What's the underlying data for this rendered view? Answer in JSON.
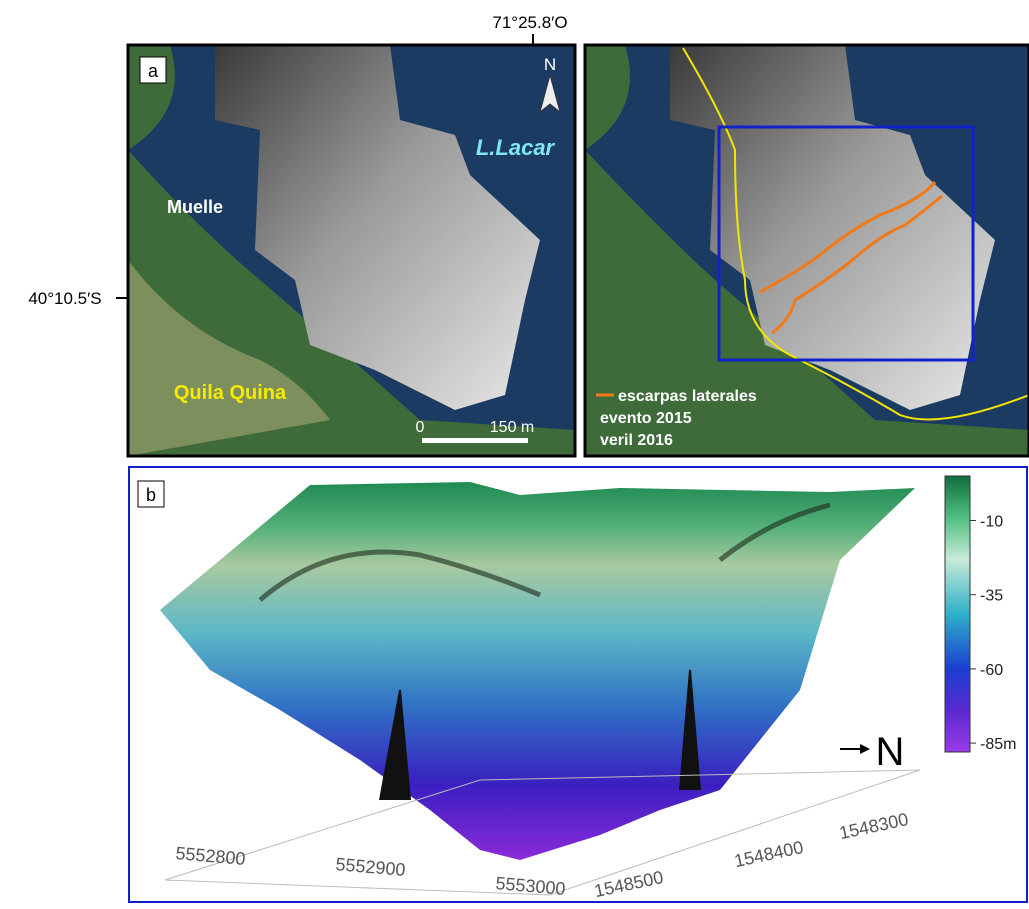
{
  "coords": {
    "longitude": "71°25.8′O",
    "latitude": "40°10.5′S"
  },
  "panel_a": {
    "label": "a",
    "north": "N",
    "lake": "L.Lacar",
    "pier": "Muelle",
    "town": "Quila Quina",
    "scale_start": "0",
    "scale_end": "150 m",
    "legend": [
      "escarpas laterales",
      "evento 2015",
      "veril 2016"
    ]
  },
  "panel_b": {
    "label": "b",
    "north": "N",
    "colorbar": {
      "lim": [
        -88,
        5
      ],
      "ticks": [
        -10,
        -35,
        -60,
        {
          "value": -85,
          "label": "-85m"
        }
      ]
    },
    "x_ticks": [
      5552800,
      5552900,
      5553000
    ],
    "y_ticks": [
      1548500,
      1548400,
      1548300
    ]
  }
}
